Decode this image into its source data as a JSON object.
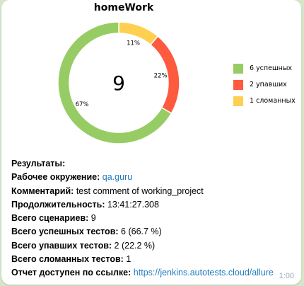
{
  "message": {
    "chart_title": "homeWork",
    "time": "1:00",
    "chart_data": {
      "type": "pie",
      "title": "homeWork",
      "center_label": "9",
      "slices": [
        {
          "label": "6 успешных",
          "value": 6,
          "percent_label": "67%",
          "color": "#97cc64"
        },
        {
          "label": "2 упавших",
          "value": 2,
          "percent_label": "22%",
          "color": "#fd5a3e"
        },
        {
          "label": "1 сломанных",
          "value": 1,
          "percent_label": "11%",
          "color": "#ffd050"
        }
      ],
      "legend_position": "right"
    },
    "lines": [
      {
        "key": "Результаты:",
        "value": ""
      },
      {
        "key": "Рабочее окружение:",
        "value": "qa.guru",
        "link": true
      },
      {
        "key": "Комментарий:",
        "value": "test comment of working_project"
      },
      {
        "key": "Продолжительность:",
        "value": "13:41:27.308"
      },
      {
        "key": "Всего сценариев:",
        "value": "9"
      },
      {
        "key": "Всего успешных тестов:",
        "value": "6 (66.7 %)"
      },
      {
        "key": "Всего упавших тестов:",
        "value": "2 (22.2 %)"
      },
      {
        "key": "Всего сломанных тестов:",
        "value": "1"
      },
      {
        "key": "Отчет доступен по ссылке:",
        "value": "https://jenkins.autotests.cloud/allure",
        "link": true
      }
    ]
  }
}
